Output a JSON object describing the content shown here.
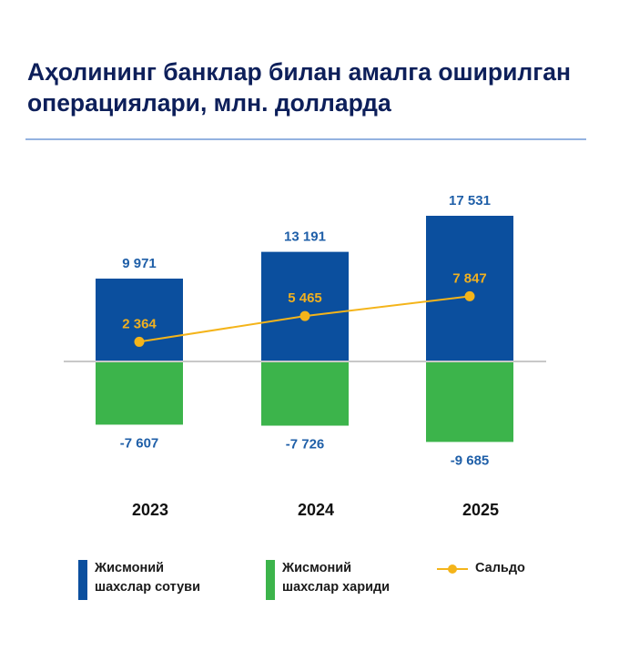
{
  "chart_data": {
    "type": "bar",
    "title": "Аҳолининг банклар билан амалга оширилган операциялари, млн. долларда",
    "categories": [
      "2023",
      "2024",
      "2025"
    ],
    "series": [
      {
        "name": "Жисмоний шахслар сотуви",
        "type": "bar",
        "color": "#0b4f9e",
        "values": [
          9971,
          13191,
          17531
        ],
        "labels": [
          "9 971",
          "13 191",
          "17 531"
        ]
      },
      {
        "name": "Жисмоний шахслар хариди",
        "type": "bar",
        "color": "#3cb44b",
        "values": [
          -7607,
          -7726,
          -9685
        ],
        "labels": [
          "-7 607",
          "-7 726",
          "-9 685"
        ]
      },
      {
        "name": "Сальдо",
        "type": "line",
        "color": "#f4b41a",
        "values": [
          2364,
          5465,
          7847
        ],
        "labels": [
          "2 364",
          "5 465",
          "7 847"
        ]
      }
    ],
    "legend": {
      "placement": "bottom",
      "items": [
        {
          "line1": "Жисмоний",
          "line2": "шахслар сотуви",
          "color": "#0b4f9e"
        },
        {
          "line1": "Жисмоний",
          "line2": "шахслар хариди",
          "color": "#3cb44b"
        },
        {
          "line1": "Сальдо",
          "line2": "",
          "color": "#f4b41a"
        }
      ]
    },
    "grid": false,
    "label_color": "#1f5fa8",
    "saldo_label_color": "#f0b020"
  }
}
